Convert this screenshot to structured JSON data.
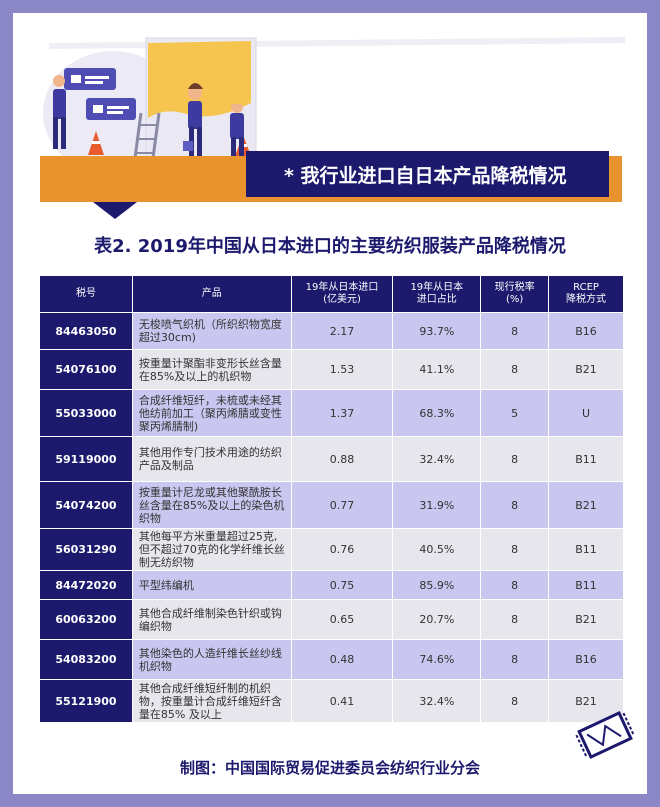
{
  "banner": {
    "title": "* 我行业进口自日本产品降税情况"
  },
  "table_title": "表2. 2019年中国从日本进口的主要纺织服装产品降税情况",
  "columns": [
    "税号",
    "产品",
    "19年从日本进口\n(亿美元)",
    "19年从日本\n进口占比",
    "现行税率\n(%)",
    "RCEP\n降税方式"
  ],
  "rows": [
    {
      "code": "84463050",
      "product": "无梭喷气织机（所织织物宽度超过30cm)",
      "value": "2.17",
      "share": "93.7%",
      "rate": "8",
      "method": "B16"
    },
    {
      "code": "54076100",
      "product": "按重量计聚酯非变形长丝含量在85%及以上的机织物",
      "value": "1.53",
      "share": "41.1%",
      "rate": "8",
      "method": "B21"
    },
    {
      "code": "55033000",
      "product": "合成纤维短纤，未梳或未经其他纺前加工（聚丙烯腈或变性聚丙烯腈制)",
      "value": "1.37",
      "share": "68.3%",
      "rate": "5",
      "method": "U"
    },
    {
      "code": "59119000",
      "product": "其他用作专门技术用途的纺织产品及制品",
      "value": "0.88",
      "share": "32.4%",
      "rate": "8",
      "method": "B11"
    },
    {
      "code": "54074200",
      "product": "按重量计尼龙或其他聚酰胺长丝含量在85%及以上的染色机织物",
      "value": "0.77",
      "share": "31.9%",
      "rate": "8",
      "method": "B21"
    },
    {
      "code": "56031290",
      "product": "其他每平方米重量超过25克,但不超过70克的化学纤维长丝制无纺织物",
      "value": "0.76",
      "share": "40.5%",
      "rate": "8",
      "method": "B11"
    },
    {
      "code": "84472020",
      "product": "平型纬编机",
      "value": "0.75",
      "share": "85.9%",
      "rate": "8",
      "method": "B11"
    },
    {
      "code": "60063200",
      "product": "其他合成纤维制染色针织或钩编织物",
      "value": "0.65",
      "share": "20.7%",
      "rate": "8",
      "method": "B21"
    },
    {
      "code": "54083200",
      "product": "其他染色的人造纤维长丝纱线机织物",
      "value": "0.48",
      "share": "74.6%",
      "rate": "8",
      "method": "B16"
    },
    {
      "code": "55121900",
      "product": "其他合成纤维短纤制的机织物，按重量计合成纤维短纤含量在85% 及以上",
      "value": "0.41",
      "share": "32.4%",
      "rate": "8",
      "method": "B21"
    }
  ],
  "footer": "制图：中国国际贸易促进委员会纺织行业分会",
  "colors": {
    "navy": "#1d1a6e",
    "orange": "#e8932e",
    "lavender": "#c9c6ef",
    "gray": "#e7e6ec",
    "frame": "#8b86c5"
  }
}
